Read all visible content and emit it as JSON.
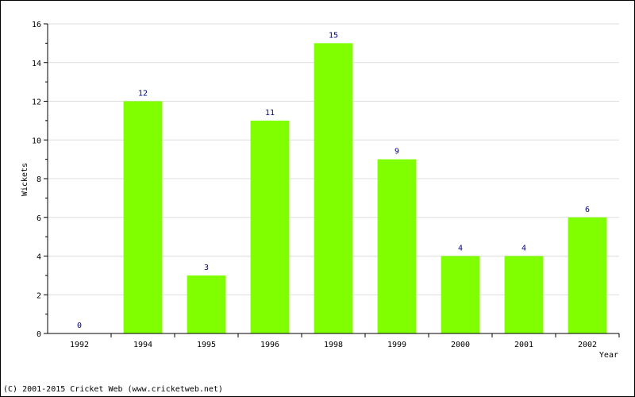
{
  "chart_data": {
    "type": "bar",
    "title": "",
    "xlabel": "Year",
    "ylabel": "Wickets",
    "categories": [
      "1992",
      "1994",
      "1995",
      "1996",
      "1998",
      "1999",
      "2000",
      "2001",
      "2002"
    ],
    "values": [
      0,
      12,
      3,
      11,
      15,
      9,
      4,
      4,
      6
    ],
    "data_labels": [
      "0",
      "12",
      "3",
      "11",
      "15",
      "9",
      "4",
      "4",
      "6"
    ],
    "yticks": [
      "0",
      "2",
      "4",
      "6",
      "8",
      "10",
      "12",
      "14",
      "16"
    ],
    "ylim": [
      0,
      16
    ],
    "grid": true,
    "bar_color": "#80ff00",
    "label_color": "#000080"
  },
  "footer": {
    "copyright": "(C) 2001-2015 Cricket Web (www.cricketweb.net)"
  }
}
